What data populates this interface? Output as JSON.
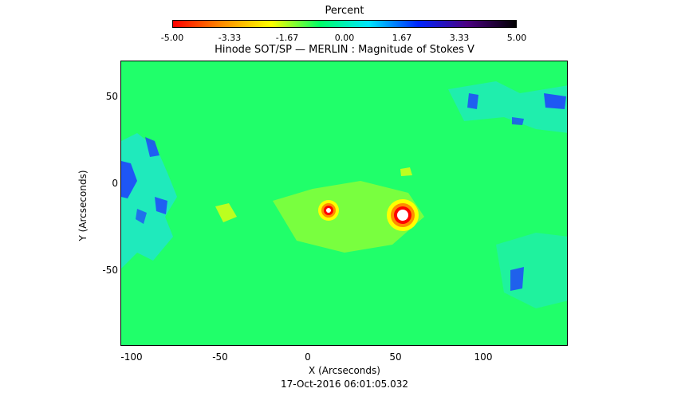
{
  "colorbar": {
    "label": "Percent",
    "ticks": [
      "-5.00",
      "-3.33",
      "-1.67",
      "0.00",
      "1.67",
      "3.33",
      "5.00"
    ],
    "range": [
      -5.0,
      5.0
    ],
    "colors": [
      "#ff0000",
      "#ff8c00",
      "#ffff00",
      "#00ff66",
      "#00e5ff",
      "#0026ff",
      "#4b0082",
      "#000000"
    ]
  },
  "plot": {
    "title": "Hinode SOT/SP — MERLIN : Magnitude of Stokes V",
    "x_axis_label": "X (Arcseconds)",
    "y_axis_label": "Y (Arcseconds)",
    "x_ticks": [
      "-100",
      "-50",
      "0",
      "50",
      "100"
    ],
    "y_ticks": [
      "50",
      "0",
      "-50"
    ],
    "x_range": [
      -108,
      148
    ],
    "y_range": [
      -93,
      71
    ],
    "background_color": "#20ff6a",
    "timestamp": "17-Oct-2016 06:01:05.032"
  }
}
